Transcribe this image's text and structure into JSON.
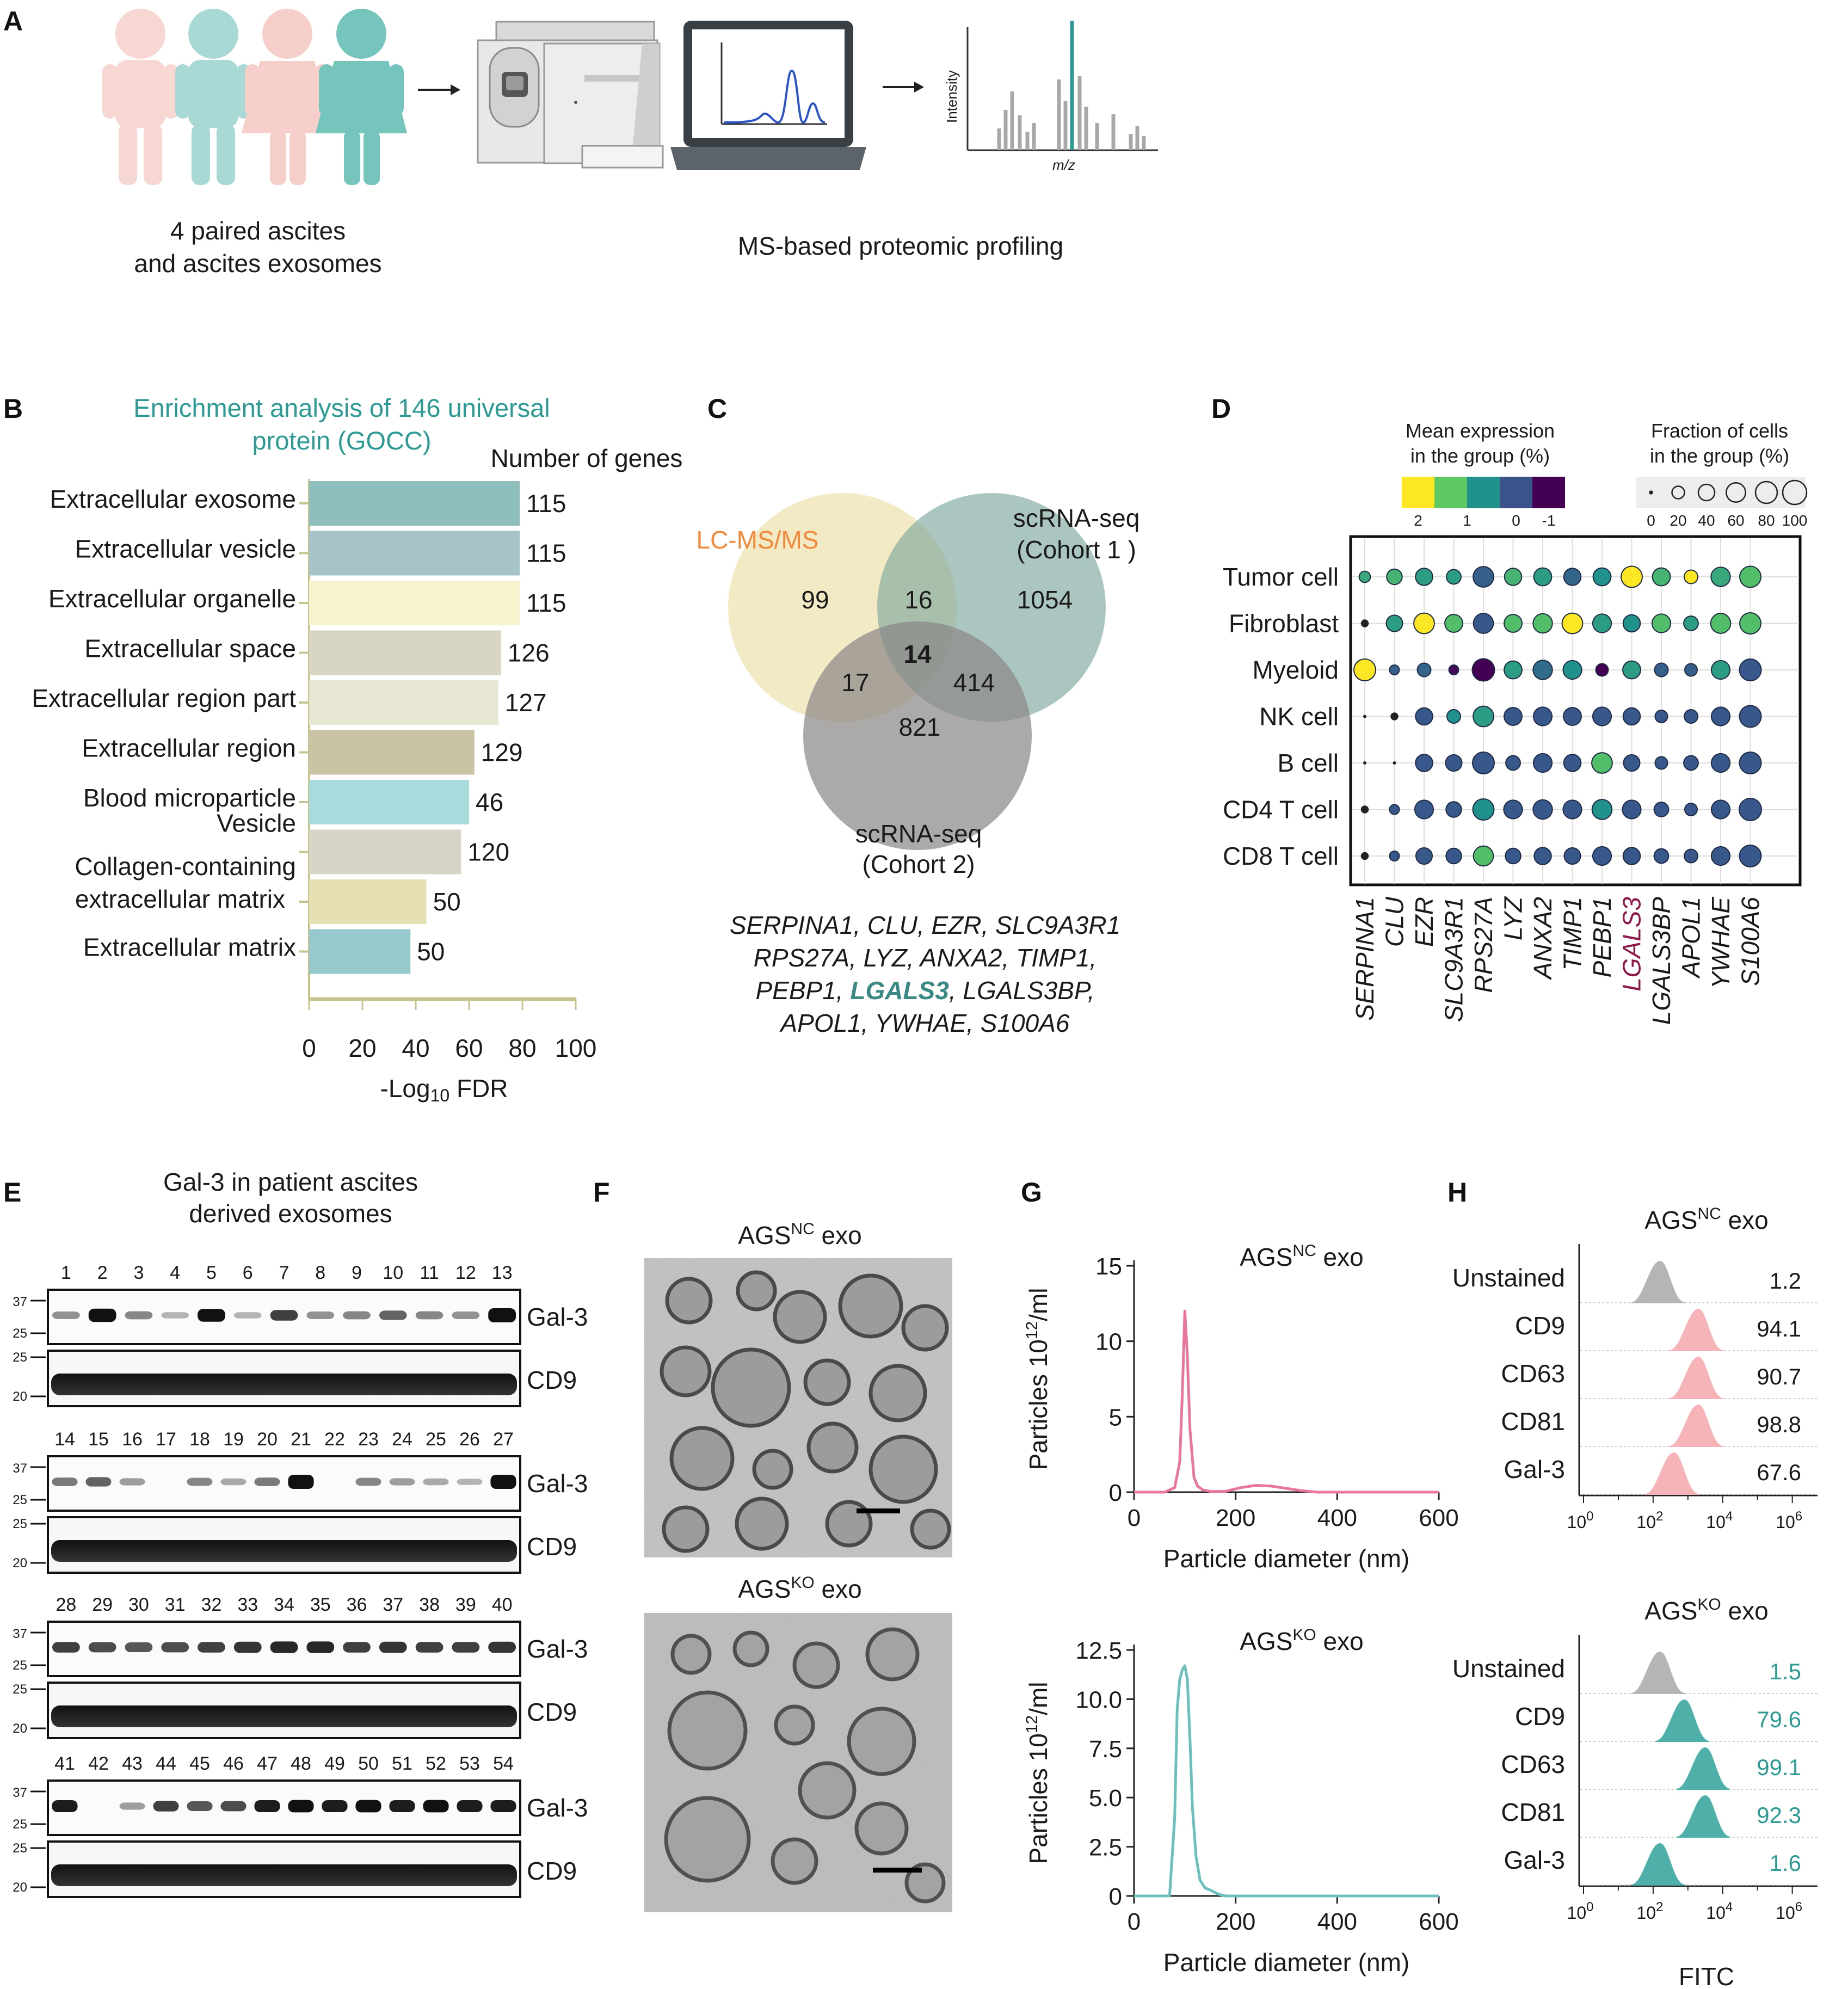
{
  "panels": {
    "A": {
      "label": "A",
      "caption_left_line1": "4 paired ascites",
      "caption_left_line2": "and ascites exosomes",
      "caption_right": "MS-based proteomic profiling",
      "spectrum_y": "Intensity",
      "spectrum_x": "m/z"
    },
    "B": {
      "label": "B",
      "title_line1": "Enrichment analysis of 146 universal",
      "title_line2": "protein (GOCC)",
      "count_header": "Number of genes",
      "xlabel_prefix": "-Log",
      "xlabel_sub": "10",
      "xlabel_suffix": " FDR",
      "xticks": [
        "0",
        "20",
        "40",
        "60",
        "80",
        "100"
      ]
    },
    "C": {
      "label": "C",
      "set1": "LC-MS/MS",
      "set2_line1": "scRNA-seq",
      "set2_line2": "(Cohort 1 )",
      "set3_line1": "scRNA-seq",
      "set3_line2": "(Cohort 2)",
      "n_only1": "99",
      "n_1and2": "16",
      "n_only2": "1054",
      "n_all": "14",
      "n_1and3": "17",
      "n_2and3": "414",
      "n_only3": "821",
      "genes_line1": "SERPINA1, CLU, EZR, SLC9A3R1",
      "genes_line2": "RPS27A, LYZ, ANXA2, TIMP1,",
      "genes_line3a": "PEBP1, ",
      "genes_line3b": "LGALS3",
      "genes_line3c": ", LGALS3BP,",
      "genes_line4": "APOL1, YWHAE, S100A6"
    },
    "D": {
      "label": "D",
      "color_legend_line1": "Mean expression",
      "color_legend_line2": "in the group (%)",
      "color_ticks": [
        "2",
        "1",
        "0",
        "-1"
      ],
      "size_legend_line1": "Fraction of cells",
      "size_legend_line2": "in the group (%)",
      "size_ticks": [
        "0",
        "20",
        "40",
        "60",
        "80",
        "100"
      ]
    },
    "E": {
      "label": "E",
      "title_line1": "Gal-3 in patient ascites",
      "title_line2": "derived exosomes",
      "blot_label_top": "Gal-3",
      "blot_label_bottom": "CD9",
      "mw_top": [
        "37",
        "25"
      ],
      "mw_bottom": [
        "25",
        "20"
      ],
      "lane_rows": [
        [
          "1",
          "2",
          "3",
          "4",
          "5",
          "6",
          "7",
          "8",
          "9",
          "10",
          "11",
          "12",
          "13"
        ],
        [
          "14",
          "15",
          "16",
          "17",
          "18",
          "19",
          "20",
          "21",
          "22",
          "23",
          "24",
          "25",
          "26",
          "27"
        ],
        [
          "28",
          "29",
          "30",
          "31",
          "32",
          "33",
          "34",
          "35",
          "36",
          "37",
          "38",
          "39",
          "40"
        ],
        [
          "41",
          "42",
          "43",
          "44",
          "45",
          "46",
          "47",
          "48",
          "49",
          "50",
          "51",
          "52",
          "53",
          "54"
        ]
      ]
    },
    "F": {
      "label": "F",
      "title_nc_base": "AGS",
      "title_nc_sup": "NC",
      "title_nc_tail": " exo",
      "title_ko_base": "AGS",
      "title_ko_sup": "KO",
      "title_ko_tail": " exo"
    },
    "G": {
      "label": "G",
      "nc_title_base": "AGS",
      "nc_title_sup": "NC",
      "nc_title_tail": " exo",
      "ko_title_base": "AGS",
      "ko_title_sup": "KO",
      "ko_title_tail": " exo",
      "ylabel_base": "Particles 10",
      "ylabel_sup": "12",
      "ylabel_tail": "/ml",
      "xlabel": "Particle diameter (nm)",
      "nc_yticks": [
        "15",
        "10",
        "5",
        "0"
      ],
      "ko_yticks": [
        "12.5",
        "10.0",
        "7.5",
        "5.0",
        "2.5",
        "0"
      ],
      "xticks": [
        "0",
        "200",
        "400",
        "600"
      ],
      "nc_color": "#e8779a",
      "ko_color": "#6cc0bc"
    },
    "H": {
      "label": "H",
      "nc_title_base": "AGS",
      "nc_title_sup": "NC",
      "nc_title_tail": " exo",
      "ko_title_base": "AGS",
      "ko_title_sup": "KO",
      "ko_title_tail": " exo",
      "xlabel": "FITC",
      "xtick_base": "10",
      "xtick_exps": [
        "0",
        "2",
        "4",
        "6"
      ],
      "rows": [
        "Unstained",
        "CD9",
        "CD63",
        "CD81",
        "Gal-3"
      ],
      "nc_values": [
        "1.2",
        "94.1",
        "90.7",
        "98.8",
        "67.6"
      ],
      "ko_values": [
        "1.5",
        "79.6",
        "99.1",
        "92.3",
        "1.6"
      ],
      "nc_color": "#f7b4b8",
      "ko_color": "#4fb0aa",
      "unstained_color": "#b5b5b5"
    }
  },
  "chart_data": [
    {
      "type": "bar",
      "panel": "B",
      "orientation": "horizontal",
      "title": "Enrichment analysis of 146 universal protein (GOCC)",
      "xlabel": "-Log10 FDR",
      "xlim": [
        0,
        100
      ],
      "categories": [
        "Extracellular exosome",
        "Extracellular vesicle",
        "Extracellular organelle",
        "Extracellular space",
        "Extracellular region part",
        "Extracellular region",
        "Blood microparticle",
        "Vesicle",
        "Collagen-containing extracellular matrix",
        "Extracellular matrix"
      ],
      "values": [
        79,
        79,
        79,
        72,
        71,
        62,
        60,
        57,
        44,
        38
      ],
      "gene_counts": [
        "115",
        "115",
        "115",
        "126",
        "127",
        "129",
        "46",
        "120",
        "50",
        "50"
      ],
      "colors": [
        "#8fbfbd",
        "#a6c3c8",
        "#f7f3cc",
        "#d8d5c4",
        "#e6e6d3",
        "#c9c5a4",
        "#a8dcdc",
        "#d7d6c6",
        "#e6e1b2",
        "#96c8cc"
      ]
    },
    {
      "type": "scatter",
      "panel": "D",
      "subtype": "dotplot",
      "rows": [
        "Tumor cell",
        "Fibroblast",
        "Myeloid",
        "NK cell",
        "B cell",
        "CD4 T cell",
        "CD8 T cell"
      ],
      "genes": [
        "SERPINA1",
        "CLU",
        "EZR",
        "SLC9A3R1",
        "RPS27A",
        "LYZ",
        "ANXA2",
        "TIMP1",
        "PEBP1",
        "LGALS3",
        "LGALS3BP",
        "APOL1",
        "YWHAE",
        "S100A6"
      ],
      "highlight_gene": "LGALS3",
      "expression": [
        [
          1.2,
          1.3,
          1.1,
          1.1,
          0.2,
          1.3,
          1.1,
          0.3,
          1.0,
          2.0,
          1.3,
          2.0,
          1.2,
          1.4
        ],
        [
          0.5,
          1.1,
          2.0,
          1.4,
          0.1,
          1.4,
          1.4,
          2.0,
          1.1,
          1.0,
          1.4,
          1.1,
          1.4,
          1.4
        ],
        [
          2.0,
          0.2,
          0.3,
          -0.9,
          -1.0,
          1.1,
          0.4,
          1.0,
          -1.0,
          1.1,
          0.2,
          0.2,
          1.1,
          0.1
        ],
        [
          0.1,
          0.1,
          0.1,
          1.0,
          1.1,
          0.1,
          0.1,
          0.1,
          0.1,
          0.1,
          0.1,
          0.1,
          0.1,
          0.1
        ],
        [
          0.1,
          0.1,
          0.1,
          0.1,
          0.1,
          0.1,
          0.1,
          0.1,
          1.4,
          0.1,
          0.1,
          0.1,
          0.1,
          0.1
        ],
        [
          0.1,
          0.1,
          0.1,
          0.1,
          1.0,
          0.1,
          0.1,
          0.1,
          1.0,
          0.1,
          0.1,
          0.1,
          0.1,
          0.1
        ],
        [
          0.1,
          0.1,
          0.1,
          0.1,
          1.4,
          0.1,
          0.1,
          0.1,
          0.1,
          0.1,
          0.1,
          0.1,
          0.1,
          0.1
        ]
      ],
      "fraction": [
        [
          15,
          35,
          45,
          30,
          70,
          45,
          50,
          45,
          50,
          75,
          50,
          25,
          60,
          75
        ],
        [
          5,
          40,
          70,
          50,
          65,
          50,
          60,
          70,
          55,
          45,
          55,
          30,
          65,
          75
        ],
        [
          80,
          10,
          25,
          10,
          85,
          50,
          60,
          55,
          20,
          50,
          25,
          20,
          55,
          80
        ],
        [
          3,
          5,
          45,
          25,
          70,
          50,
          55,
          50,
          55,
          45,
          20,
          25,
          55,
          80
        ],
        [
          3,
          3,
          45,
          40,
          80,
          30,
          55,
          45,
          70,
          40,
          20,
          30,
          55,
          80
        ],
        [
          5,
          10,
          55,
          35,
          75,
          55,
          60,
          55,
          65,
          55,
          30,
          20,
          55,
          85
        ],
        [
          5,
          10,
          40,
          35,
          65,
          35,
          45,
          40,
          55,
          45,
          30,
          25,
          55,
          80
        ]
      ],
      "color_ticks": [
        2,
        1,
        0,
        -1
      ],
      "size_ticks": [
        0,
        20,
        40,
        60,
        80,
        100
      ]
    },
    {
      "type": "line",
      "panel": "G",
      "title": "AGSNC exo",
      "xlabel": "Particle diameter (nm)",
      "ylabel": "Particles 1012/ml",
      "xlim": [
        0,
        600
      ],
      "ylim": [
        0,
        15
      ],
      "x": [
        0,
        60,
        80,
        90,
        95,
        100,
        105,
        110,
        118,
        125,
        135,
        150,
        180,
        210,
        240,
        270,
        300,
        330,
        360,
        600
      ],
      "y": [
        0,
        0,
        0.3,
        2.0,
        6.5,
        12.0,
        9.0,
        4.2,
        1.0,
        0.4,
        0.15,
        0.05,
        0.05,
        0.3,
        0.45,
        0.4,
        0.25,
        0.1,
        0,
        0
      ]
    },
    {
      "type": "line",
      "panel": "G",
      "title": "AGSKO exo",
      "xlabel": "Particle diameter (nm)",
      "ylabel": "Particles 1012/ml",
      "xlim": [
        0,
        600
      ],
      "ylim": [
        0,
        12.5
      ],
      "x": [
        0,
        70,
        80,
        85,
        90,
        95,
        100,
        105,
        110,
        115,
        122,
        130,
        140,
        150,
        165,
        180,
        600
      ],
      "y": [
        0,
        0,
        4.0,
        9.5,
        11.0,
        11.5,
        11.7,
        11.0,
        8.0,
        4.5,
        2.0,
        0.8,
        0.4,
        0.3,
        0.1,
        0,
        0
      ]
    },
    {
      "type": "area",
      "panel": "H",
      "subtype": "histogram-overlay",
      "title": "AGSNC exo",
      "xlabel": "FITC",
      "series": [
        {
          "name": "Unstained",
          "peak_log10": 2.2,
          "value": "1.2"
        },
        {
          "name": "CD9",
          "peak_log10": 3.3,
          "value": "94.1"
        },
        {
          "name": "CD63",
          "peak_log10": 3.3,
          "value": "90.7"
        },
        {
          "name": "CD81",
          "peak_log10": 3.3,
          "value": "98.8"
        },
        {
          "name": "Gal-3",
          "peak_log10": 2.6,
          "value": "67.6"
        }
      ]
    },
    {
      "type": "area",
      "panel": "H",
      "subtype": "histogram-overlay",
      "title": "AGSKO exo",
      "xlabel": "FITC",
      "series": [
        {
          "name": "Unstained",
          "peak_log10": 2.2,
          "value": "1.5"
        },
        {
          "name": "CD9",
          "peak_log10": 2.9,
          "value": "79.6"
        },
        {
          "name": "CD63",
          "peak_log10": 3.5,
          "value": "99.1"
        },
        {
          "name": "CD81",
          "peak_log10": 3.5,
          "value": "92.3"
        },
        {
          "name": "Gal-3",
          "peak_log10": 2.2,
          "value": "1.6"
        }
      ]
    }
  ]
}
